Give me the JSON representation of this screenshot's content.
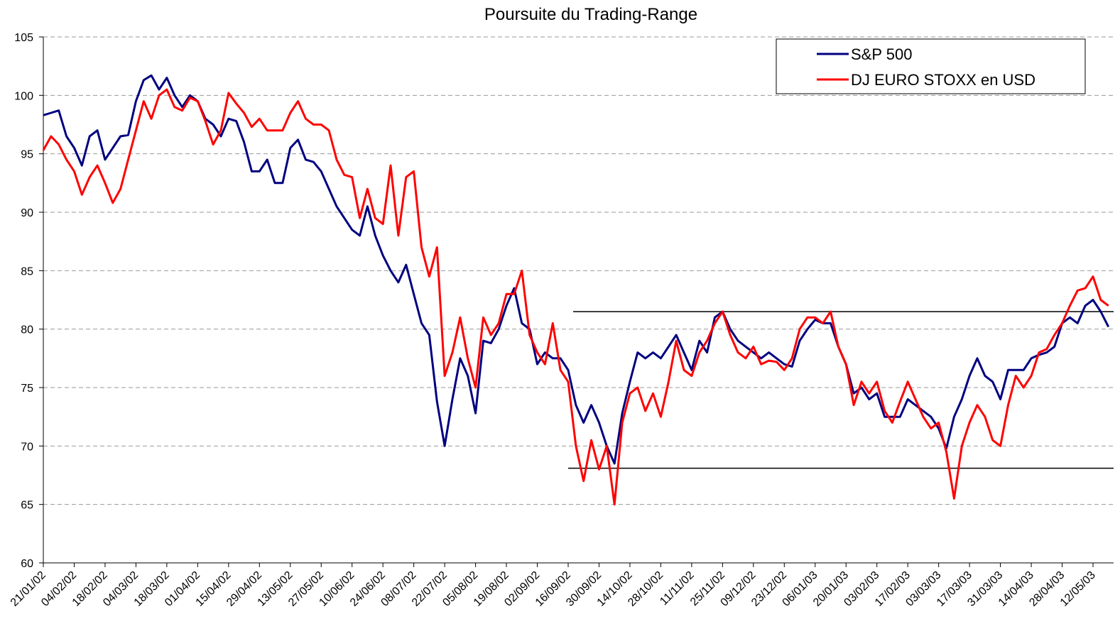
{
  "chart_data": {
    "type": "line",
    "title": "Poursuite du Trading-Range",
    "categories": [
      "21/01/02",
      null,
      null,
      null,
      "04/02/02",
      null,
      null,
      null,
      "18/02/02",
      null,
      null,
      null,
      "04/03/02",
      null,
      null,
      null,
      "18/03/02",
      null,
      null,
      null,
      "01/04/02",
      null,
      null,
      null,
      "15/04/02",
      null,
      null,
      null,
      "29/04/02",
      null,
      null,
      null,
      "13/05/02",
      null,
      null,
      null,
      "27/05/02",
      null,
      null,
      null,
      "10/06/02",
      null,
      null,
      null,
      "24/06/02",
      null,
      null,
      null,
      "08/07/02",
      null,
      null,
      null,
      "22/07/02",
      null,
      null,
      null,
      "05/08/02",
      null,
      null,
      null,
      "19/08/02",
      null,
      null,
      null,
      "02/09/02",
      null,
      null,
      null,
      "16/09/02",
      null,
      null,
      null,
      "30/09/02",
      null,
      null,
      null,
      "14/10/02",
      null,
      null,
      null,
      "28/10/02",
      null,
      null,
      null,
      "11/11/02",
      null,
      null,
      null,
      "25/11/02",
      null,
      null,
      null,
      "09/12/02",
      null,
      null,
      null,
      "23/12/02",
      null,
      null,
      null,
      "06/01/03",
      null,
      null,
      null,
      "20/01/03",
      null,
      null,
      null,
      "03/02/03",
      null,
      null,
      null,
      "17/02/03",
      null,
      null,
      null,
      "03/03/03",
      null,
      null,
      null,
      "17/03/03",
      null,
      null,
      null,
      "31/03/03",
      null,
      null,
      null,
      "14/04/03",
      null,
      null,
      null,
      "28/04/03",
      null,
      null,
      null,
      "12/05/03",
      null,
      null
    ],
    "series": [
      {
        "name": "S&P 500",
        "color": "#000080",
        "values": [
          98.3,
          98.5,
          98.7,
          96.5,
          95.5,
          94,
          96.5,
          97,
          94.5,
          95.5,
          96.5,
          96.6,
          99.5,
          101.3,
          101.7,
          100.5,
          101.5,
          100,
          99,
          100,
          99.5,
          98,
          97.5,
          96.5,
          98,
          97.8,
          96,
          93.5,
          93.5,
          94.5,
          92.5,
          92.5,
          95.5,
          96.2,
          94.5,
          94.3,
          93.5,
          92,
          90.5,
          89.5,
          88.5,
          88,
          90.5,
          88,
          86.3,
          85,
          84,
          85.5,
          83,
          80.5,
          79.5,
          73.8,
          70,
          74,
          77.5,
          76,
          72.8,
          79,
          78.8,
          80,
          82,
          83.5,
          80.5,
          80,
          77,
          78,
          77.5,
          77.5,
          76.5,
          73.5,
          72,
          73.5,
          72,
          70,
          68.5,
          72.8,
          75.5,
          78,
          77.5,
          78,
          77.5,
          78.5,
          79.5,
          78,
          76.5,
          79,
          78,
          81,
          81.5,
          80,
          79,
          78.5,
          78,
          77.5,
          78,
          77.5,
          77,
          76.8,
          79,
          80,
          80.8,
          80.5,
          80.5,
          78.5,
          77,
          74.5,
          75,
          74,
          74.5,
          72.5,
          72.5,
          72.5,
          74,
          73.5,
          73,
          72.5,
          71.5,
          69.8,
          72.5,
          74,
          76,
          77.5,
          76,
          75.5,
          74,
          76.5,
          76.5,
          76.5,
          77.5,
          77.8,
          78,
          78.5,
          80.5,
          81,
          80.5,
          82,
          82.5,
          81.5,
          80.2
        ]
      },
      {
        "name": "DJ EURO STOXX en USD",
        "color": "#ff0000",
        "values": [
          95.3,
          96.5,
          95.8,
          94.5,
          93.5,
          91.5,
          93,
          94,
          92.5,
          90.8,
          92,
          94.5,
          97,
          99.5,
          98,
          100,
          100.5,
          99,
          98.7,
          99.8,
          99.5,
          97.8,
          95.8,
          97,
          100.2,
          99.3,
          98.5,
          97.3,
          98,
          97,
          97,
          97,
          98.5,
          99.5,
          98,
          97.5,
          97.5,
          97,
          94.5,
          93.2,
          93,
          89.5,
          92,
          89.5,
          89,
          94,
          88,
          93,
          93.5,
          87,
          84.5,
          87,
          76,
          78,
          81,
          77.5,
          75,
          81,
          79.5,
          80.5,
          83,
          83,
          85,
          79.5,
          78,
          77,
          80.5,
          76.5,
          75.5,
          70,
          67,
          70.5,
          68,
          70,
          65,
          72,
          74.5,
          75,
          73,
          74.5,
          72.5,
          75.5,
          79,
          76.5,
          76,
          78,
          79,
          80.5,
          81.5,
          79.5,
          78,
          77.5,
          78.5,
          77,
          77.3,
          77.2,
          76.5,
          77.5,
          80,
          81,
          81,
          80.5,
          81.5,
          78.5,
          77,
          73.5,
          75.5,
          74.5,
          75.5,
          73,
          72,
          73.8,
          75.5,
          74,
          72.5,
          71.5,
          72,
          69.5,
          65.5,
          70,
          72,
          73.5,
          72.5,
          70.5,
          70,
          73.5,
          76,
          75,
          76,
          78,
          78.3,
          79.5,
          80.5,
          82,
          83.3,
          83.5,
          84.5,
          82.5,
          82
        ]
      }
    ],
    "ylim": [
      60,
      105
    ],
    "yticks": [
      60,
      65,
      70,
      75,
      80,
      85,
      90,
      95,
      100,
      105
    ],
    "grid": true,
    "legend": "top-right",
    "hlines": [
      81.5,
      68.1
    ]
  }
}
